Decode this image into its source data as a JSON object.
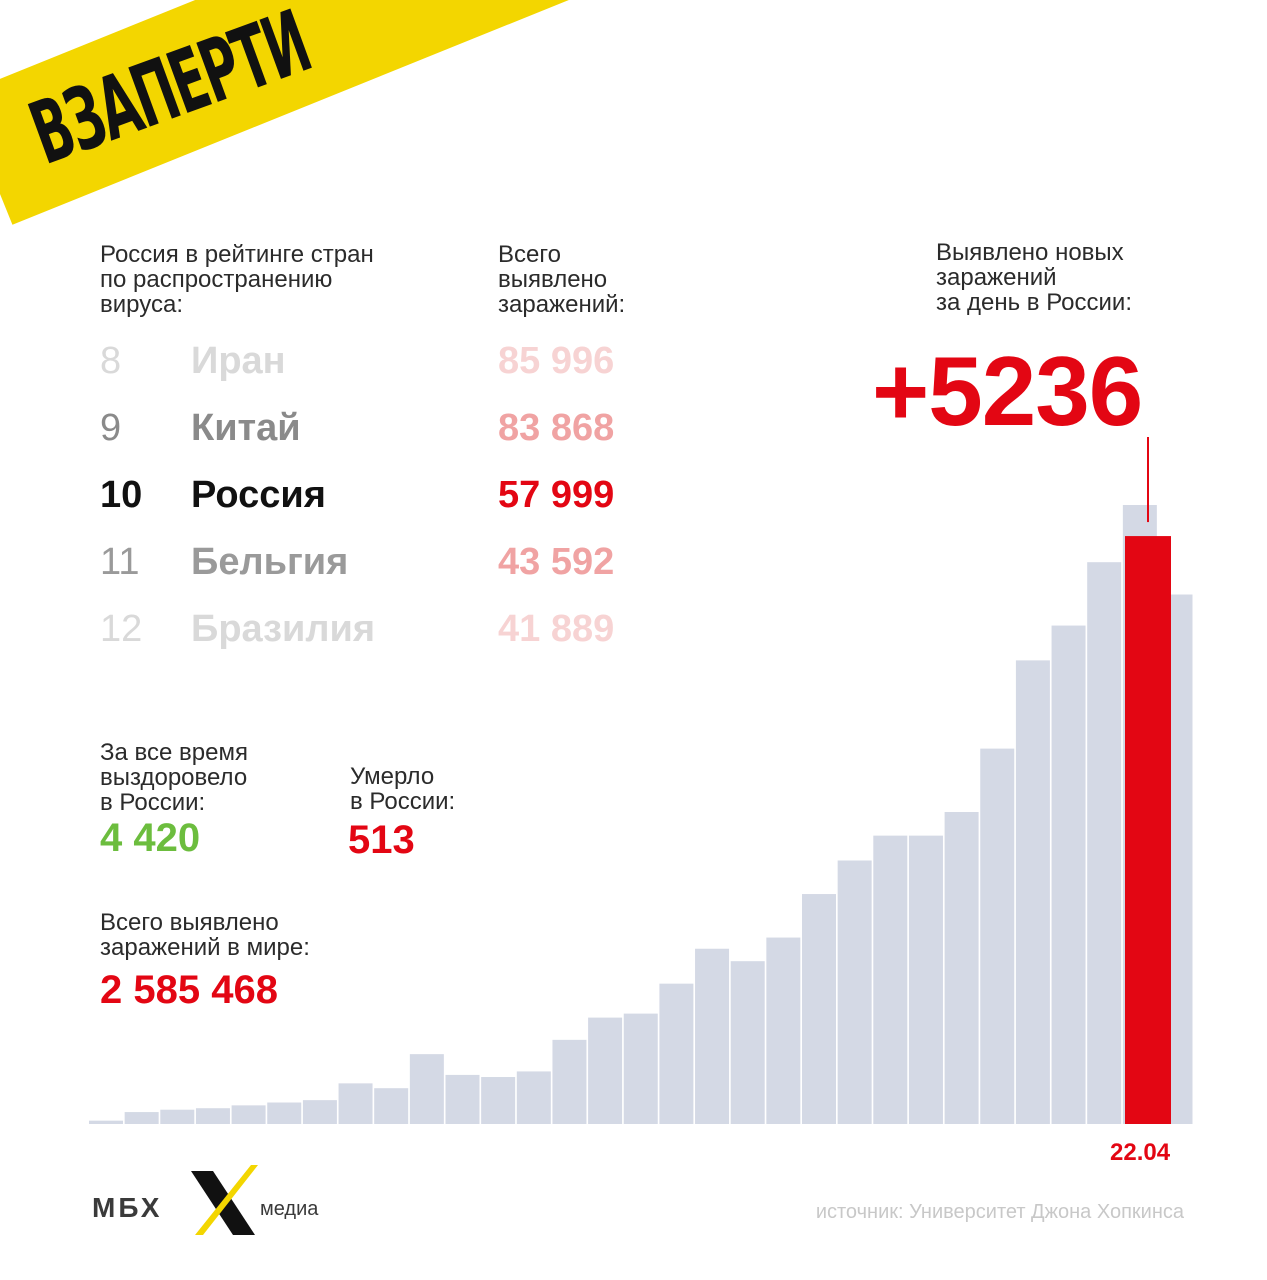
{
  "banner": {
    "title": "ВЗАПЕРТИ"
  },
  "ranking": {
    "heading_lines": [
      "Россия в рейтинге стран",
      "по распространению",
      "вируса:"
    ],
    "total_heading_lines": [
      "Всего",
      "выявлено",
      "заражений:"
    ],
    "rows": [
      {
        "rank": "8",
        "country": "Иран",
        "total": "85 996",
        "rank_color": "#d9d9d9",
        "total_color": "#f7d3d3"
      },
      {
        "rank": "9",
        "country": "Китай",
        "total": "83 868",
        "rank_color": "#8a8a8a",
        "total_color": "#f0a3a3"
      },
      {
        "rank": "10",
        "country": "Россия",
        "total": "57 999",
        "rank_color": "#111111",
        "total_color": "#e30613"
      },
      {
        "rank": "11",
        "country": "Бельгия",
        "total": "43 592",
        "rank_color": "#9a9a9a",
        "total_color": "#f0a3a3"
      },
      {
        "rank": "12",
        "country": "Бразилия",
        "total": "41 889",
        "rank_color": "#d9d9d9",
        "total_color": "#f7d3d3"
      }
    ]
  },
  "daily": {
    "heading_lines": [
      "Выявлено новых",
      "заражений",
      "за день в России:"
    ],
    "value": "+5236"
  },
  "recovered": {
    "heading_lines": [
      "За все время",
      "выздоровело",
      "в России:"
    ],
    "value": "4 420",
    "color": "#6cbd3e"
  },
  "deaths": {
    "heading_lines": [
      "Умерло",
      "в России:"
    ],
    "value": "513",
    "color": "#e30613"
  },
  "world": {
    "heading_lines": [
      "Всего выявлено",
      "заражений в мире:"
    ],
    "value": "2 585 468",
    "color": "#e30613"
  },
  "chart_data": {
    "type": "bar",
    "title": "",
    "xlabel": "",
    "ylabel": "",
    "last_label": "22.04",
    "values": [
      270,
      960,
      1150,
      1270,
      1500,
      1730,
      1920,
      3270,
      2880,
      5620,
      3950,
      3780,
      4230,
      6770,
      8560,
      8880,
      11290,
      14100,
      13100,
      15000,
      18500,
      21200,
      23200,
      23200,
      25100,
      30200,
      37300,
      40100,
      45200,
      49800,
      42600,
      47300
    ],
    "colors": {
      "bar": "#d4d9e5",
      "highlight": "#e30613"
    },
    "highlight_index": 31
  },
  "footer": {
    "logo": "МБХ",
    "media": "медиа",
    "source": "источник: Университет Джона Хопкинса"
  },
  "colors": {
    "accent": "#e30613",
    "banner": "#f3d600"
  }
}
